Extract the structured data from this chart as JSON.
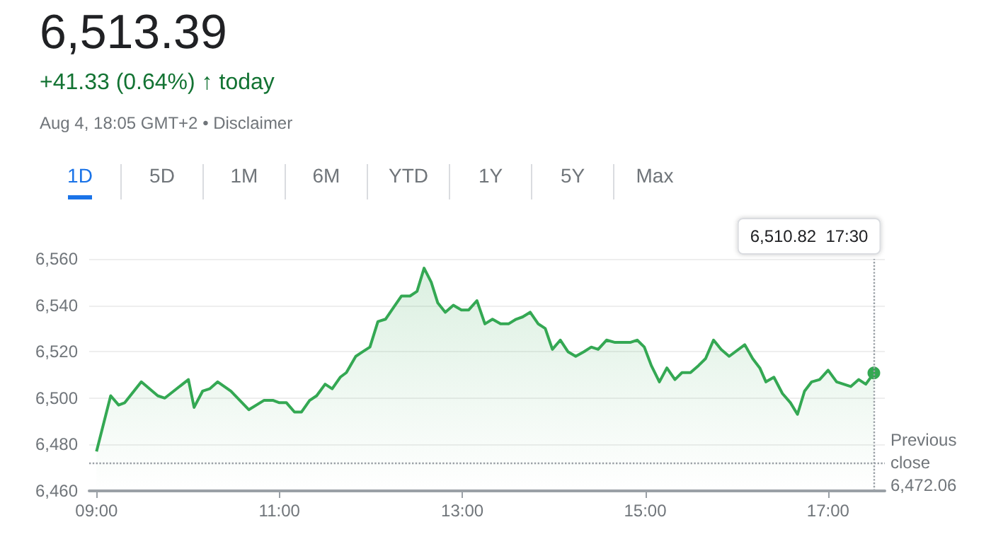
{
  "chart_data": {
    "type": "area",
    "title": "6,513.39",
    "subtitle": "+41.33 (0.64%) ↑ today",
    "annotations": [
      "Aug 4, 18:05 GMT+2 • Disclaimer",
      "1D",
      "5D",
      "1M",
      "6M",
      "YTD",
      "1Y",
      "5Y",
      "Max"
    ],
    "x": [
      9.0,
      9.155,
      9.242,
      9.309,
      9.49,
      9.67,
      9.747,
      10.005,
      10.067,
      10.16,
      10.237,
      10.325,
      10.469,
      10.665,
      10.83,
      10.933,
      11.0,
      11.077,
      11.165,
      11.242,
      11.33,
      11.407,
      11.5,
      11.577,
      11.665,
      11.732,
      11.835,
      11.912,
      11.99,
      12.077,
      12.16,
      12.247,
      12.335,
      12.428,
      12.505,
      12.582,
      12.66,
      12.732,
      12.814,
      12.902,
      12.99,
      13.07,
      13.16,
      13.247,
      13.33,
      13.418,
      13.505,
      13.588,
      13.66,
      13.742,
      13.83,
      13.907,
      13.985,
      14.072,
      14.155,
      14.24,
      14.33,
      14.41,
      14.485,
      14.577,
      14.67,
      14.758,
      14.835,
      14.912,
      14.99,
      15.067,
      15.155,
      15.237,
      15.325,
      15.402,
      15.495,
      15.582,
      15.66,
      15.747,
      15.83,
      15.918,
      16.088,
      16.175,
      16.253,
      16.32,
      16.407,
      16.5,
      16.588,
      16.665,
      16.742,
      16.82,
      16.907,
      17.0,
      17.093,
      17.247,
      17.335,
      17.412,
      17.5
    ],
    "series": [
      {
        "color": "#34a853",
        "values": [
          6477,
          6501,
          6497,
          6498,
          6507,
          6501,
          6500,
          6508,
          6496,
          6503,
          6504,
          6507,
          6503,
          6495,
          6499,
          6499,
          6498,
          6498,
          6494,
          6494,
          6499,
          6501,
          6506,
          6504,
          6509,
          6511,
          6518,
          6520,
          6522,
          6533,
          6534,
          6539,
          6544,
          6544,
          6546,
          6556,
          6550,
          6541,
          6537,
          6540,
          6538,
          6538,
          6542,
          6532,
          6534,
          6532,
          6532,
          6534,
          6535,
          6537,
          6532,
          6530,
          6521,
          6525,
          6520,
          6518,
          6520,
          6522,
          6521,
          6525,
          6524,
          6524,
          6524,
          6525,
          6522,
          6514,
          6507,
          6513,
          6508,
          6511,
          6511,
          6514,
          6517,
          6525,
          6521,
          6518,
          6523,
          6517,
          6513,
          6507,
          6509,
          6502,
          6498,
          6493,
          6503,
          6507,
          6508,
          6512,
          6507,
          6505,
          6508,
          6506,
          6510.82
        ]
      }
    ],
    "xlim": [
      8.92,
      17.62
    ],
    "xticks": [
      {
        "value": 9,
        "label": "09:00"
      },
      {
        "value": 11,
        "label": "11:00"
      },
      {
        "value": 13,
        "label": "13:00"
      },
      {
        "value": 15,
        "label": "15:00"
      },
      {
        "value": 17,
        "label": "17:00"
      }
    ],
    "ylim": [
      6460,
      6560
    ],
    "yticks": [
      {
        "value": 6460,
        "label": "6,460"
      },
      {
        "value": 6480,
        "label": "6,480"
      },
      {
        "value": 6500,
        "label": "6,500"
      },
      {
        "value": 6520,
        "label": "6,520"
      },
      {
        "value": 6540,
        "label": "6,540"
      },
      {
        "value": 6560,
        "label": "6,560"
      }
    ],
    "ref_lines": [
      {
        "axis": "y",
        "value": 6472.06,
        "label": "Previous close\n6,472.06",
        "line_style": "dotted",
        "color": "#9aa0a6"
      },
      {
        "axis": "x",
        "value": 17.5,
        "label": "6,510.82  17:30",
        "line_style": "dotted",
        "color": "#9aa0a6"
      }
    ],
    "grid": "y",
    "marker": "none"
  }
}
